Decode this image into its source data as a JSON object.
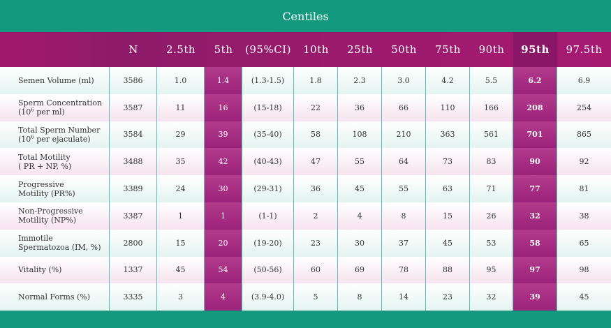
{
  "title": "Centiles",
  "colors": {
    "teal": "#13997d",
    "magenta": "#9c1a6e",
    "highlight": "#a3287e"
  },
  "table": {
    "headers": [
      "",
      "N",
      "2.5th",
      "5th",
      "(95%CI)",
      "10th",
      "25th",
      "50th",
      "75th",
      "90th",
      "95th",
      "97.5th"
    ],
    "rows": [
      {
        "label_main": "Semen Volume (ml)",
        "label_sub": "",
        "values": [
          "3586",
          "1.0",
          "1.4",
          "(1.3-1.5)",
          "1.8",
          "2.3",
          "3.0",
          "4.2",
          "5.5",
          "6.2",
          "6.9"
        ]
      },
      {
        "label_main": "Sperm Concentration",
        "label_sub_pre": "(10",
        "label_sup": "6",
        "label_sub_post": " per ml)",
        "values": [
          "3587",
          "11",
          "16",
          "(15-18)",
          "22",
          "36",
          "66",
          "110",
          "166",
          "208",
          "254"
        ]
      },
      {
        "label_main": "Total Sperm Number",
        "label_sub_pre": "(10",
        "label_sup": "6",
        "label_sub_post": " per ejaculate)",
        "values": [
          "3584",
          "29",
          "39",
          "(35-40)",
          "58",
          "108",
          "210",
          "363",
          "561",
          "701",
          "865"
        ]
      },
      {
        "label_main": "Total Motility",
        "label_sub": "( PR + NP, %)",
        "values": [
          "3488",
          "35",
          "42",
          "(40-43)",
          "47",
          "55",
          "64",
          "73",
          "83",
          "90",
          "92"
        ]
      },
      {
        "label_main": "Progressive",
        "label_sub": "Motility (PR%)",
        "values": [
          "3389",
          "24",
          "30",
          "(29-31)",
          "36",
          "45",
          "55",
          "63",
          "71",
          "77",
          "81"
        ]
      },
      {
        "label_main": "Non-Progressive",
        "label_sub": "Motility (NP%)",
        "values": [
          "3387",
          "1",
          "1",
          "(1-1)",
          "2",
          "4",
          "8",
          "15",
          "26",
          "32",
          "38"
        ]
      },
      {
        "label_main": "Immotile",
        "label_sub": "Spermatozoa (IM, %)",
        "values": [
          "2800",
          "15",
          "20",
          "(19-20)",
          "23",
          "30",
          "37",
          "45",
          "53",
          "58",
          "65"
        ]
      },
      {
        "label_main": "Vitality (%)",
        "label_sub": "",
        "values": [
          "1337",
          "45",
          "54",
          "(50-56)",
          "60",
          "69",
          "78",
          "88",
          "95",
          "97",
          "98"
        ]
      },
      {
        "label_main": "Normal Forms (%)",
        "label_sub": "",
        "values": [
          "3335",
          "3",
          "4",
          "(3.9-4.0)",
          "5",
          "8",
          "14",
          "23",
          "32",
          "39",
          "45"
        ]
      }
    ]
  }
}
